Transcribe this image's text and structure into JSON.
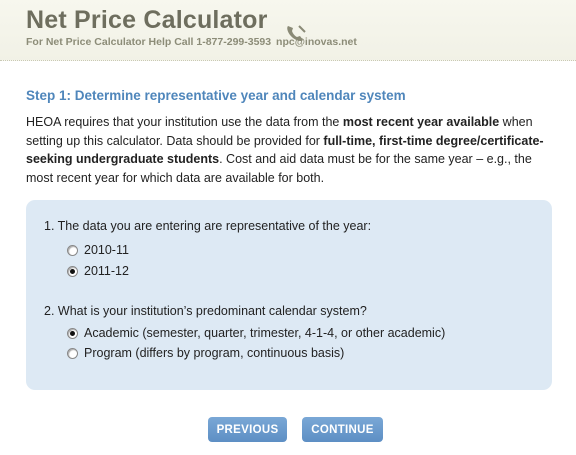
{
  "header": {
    "title": "Net Price Calculator",
    "help_text": "For Net Price Calculator Help Call 1-877-299-3593",
    "email": "npc@inovas.net"
  },
  "step": {
    "title": "Step 1: Determine representative year and calendar system",
    "intro": [
      {
        "text": "HEOA requires that your institution use the data from the ",
        "bold": false
      },
      {
        "text": "most recent year available",
        "bold": true
      },
      {
        "text": " when setting up this calculator. Data should be provided for ",
        "bold": false
      },
      {
        "text": "full-time, first-time degree/certificate-seeking undergraduate students",
        "bold": true
      },
      {
        "text": ". Cost and aid data must be for the same year – e.g., the most recent year for which data are available for both.",
        "bold": false
      }
    ]
  },
  "questions": [
    {
      "label": "1. The data you are entering are representative of the year:",
      "options": [
        {
          "label": "2010-11",
          "checked": false
        },
        {
          "label": "2011-12",
          "checked": true
        }
      ]
    },
    {
      "label": "2. What is your institution’s predominant calendar system?",
      "options": [
        {
          "label": "Academic (semester, quarter, trimester, 4-1-4, or other academic)",
          "checked": true
        },
        {
          "label": "Program (differs by program, continuous basis)",
          "checked": false
        }
      ]
    }
  ],
  "buttons": {
    "previous": "PREVIOUS",
    "continue": "CONTINUE"
  }
}
